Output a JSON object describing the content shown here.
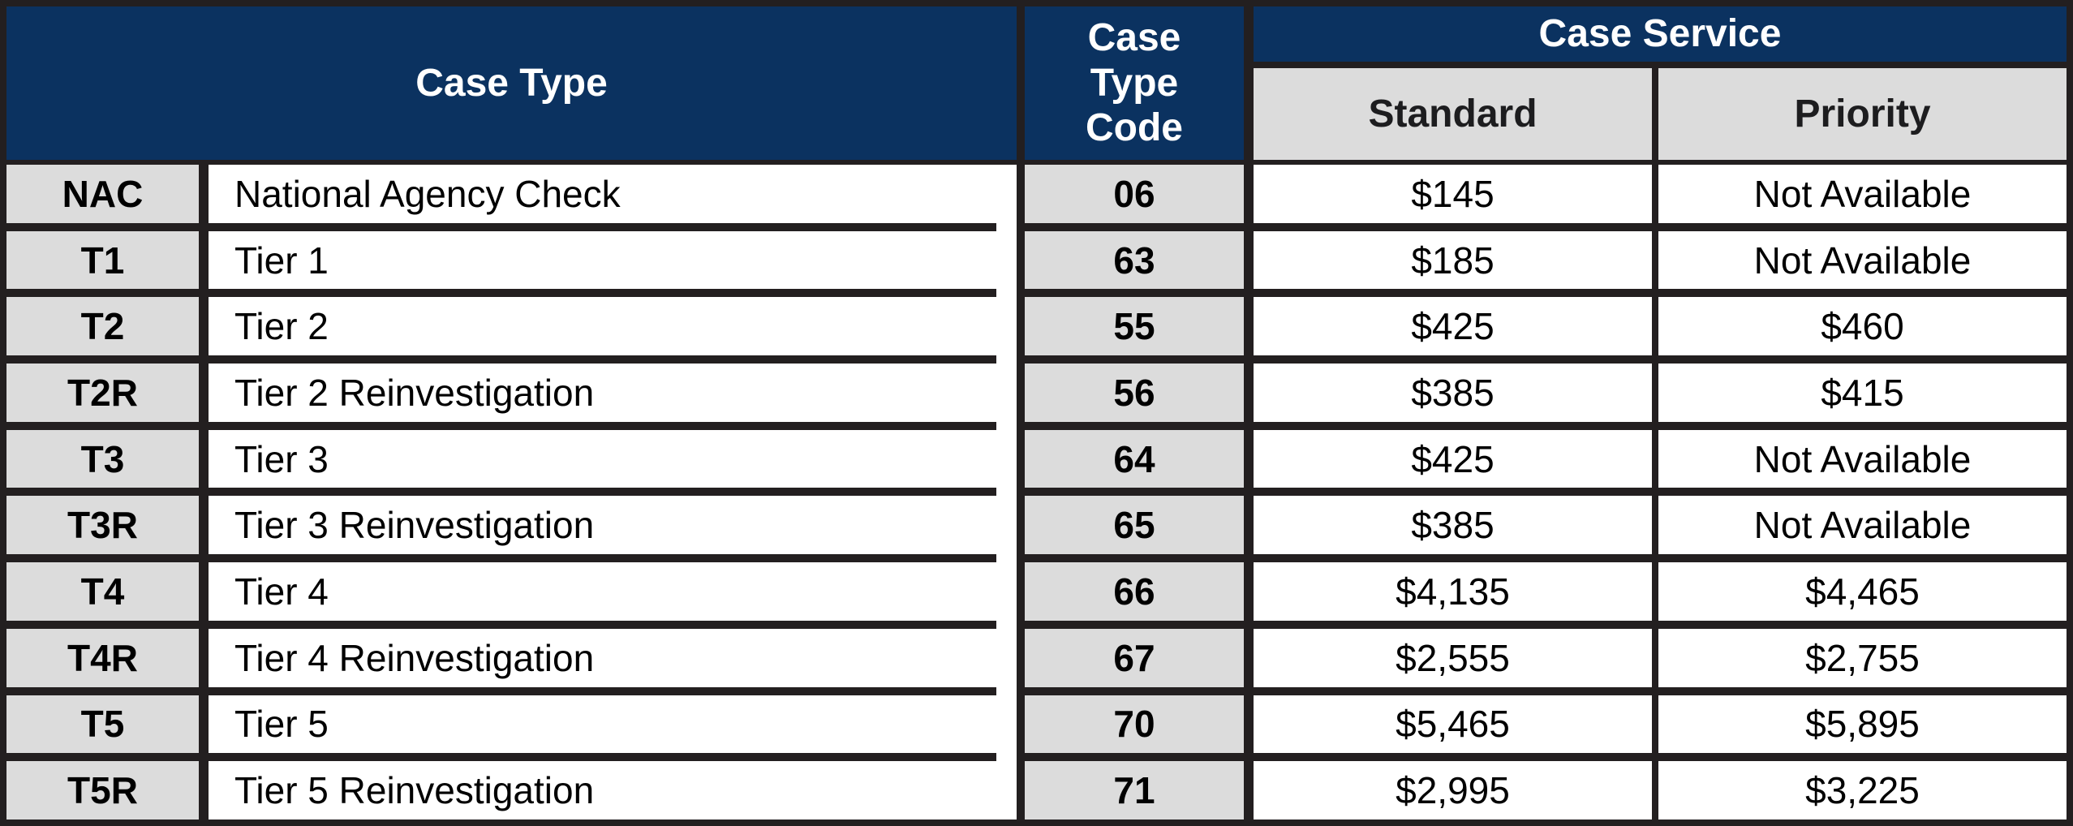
{
  "table": {
    "headers": {
      "case_type": "Case Type",
      "case_type_code": "Case Type Code",
      "case_service": "Case Service",
      "standard": "Standard",
      "priority": "Priority"
    },
    "rows": [
      {
        "abbr": "NAC",
        "name": "National Agency Check",
        "code": "06",
        "standard": "$145",
        "priority": "Not Available"
      },
      {
        "abbr": "T1",
        "name": "Tier 1",
        "code": "63",
        "standard": "$185",
        "priority": "Not Available"
      },
      {
        "abbr": "T2",
        "name": "Tier 2",
        "code": "55",
        "standard": "$425",
        "priority": "$460"
      },
      {
        "abbr": "T2R",
        "name": "Tier 2 Reinvestigation",
        "code": "56",
        "standard": "$385",
        "priority": "$415"
      },
      {
        "abbr": "T3",
        "name": "Tier 3",
        "code": "64",
        "standard": "$425",
        "priority": "Not Available"
      },
      {
        "abbr": "T3R",
        "name": "Tier 3 Reinvestigation",
        "code": "65",
        "standard": "$385",
        "priority": "Not Available"
      },
      {
        "abbr": "T4",
        "name": "Tier 4",
        "code": "66",
        "standard": "$4,135",
        "priority": "$4,465"
      },
      {
        "abbr": "T4R",
        "name": "Tier 4 Reinvestigation",
        "code": "67",
        "standard": "$2,555",
        "priority": "$2,755"
      },
      {
        "abbr": "T5",
        "name": "Tier 5",
        "code": "70",
        "standard": "$5,465",
        "priority": "$5,895"
      },
      {
        "abbr": "T5R",
        "name": "Tier 5 Reinvestigation",
        "code": "71",
        "standard": "$2,995",
        "priority": "$3,225"
      }
    ],
    "colors": {
      "header_navy": "#0b3260",
      "header_gray": "#dcdcdc",
      "border": "#231f20",
      "cell_white": "#ffffff"
    }
  },
  "chart_data": {
    "type": "table",
    "title": "",
    "columns": [
      "Case Type (abbr)",
      "Case Type (name)",
      "Case Type Code",
      "Case Service Standard",
      "Case Service Priority"
    ],
    "rows": [
      [
        "NAC",
        "National Agency Check",
        "06",
        "$145",
        "Not Available"
      ],
      [
        "T1",
        "Tier 1",
        "63",
        "$185",
        "Not Available"
      ],
      [
        "T2",
        "Tier 2",
        "55",
        "$425",
        "$460"
      ],
      [
        "T2R",
        "Tier 2 Reinvestigation",
        "56",
        "$385",
        "$415"
      ],
      [
        "T3",
        "Tier 3",
        "64",
        "$425",
        "Not Available"
      ],
      [
        "T3R",
        "Tier 3 Reinvestigation",
        "65",
        "$385",
        "Not Available"
      ],
      [
        "T4",
        "Tier 4",
        "66",
        "$4,135",
        "$4,465"
      ],
      [
        "T4R",
        "Tier 4 Reinvestigation",
        "67",
        "$2,555",
        "$2,755"
      ],
      [
        "T5",
        "Tier 5",
        "70",
        "$5,465",
        "$5,895"
      ],
      [
        "T5R",
        "Tier 5 Reinvestigation",
        "71",
        "$2,995",
        "$3,225"
      ]
    ]
  }
}
